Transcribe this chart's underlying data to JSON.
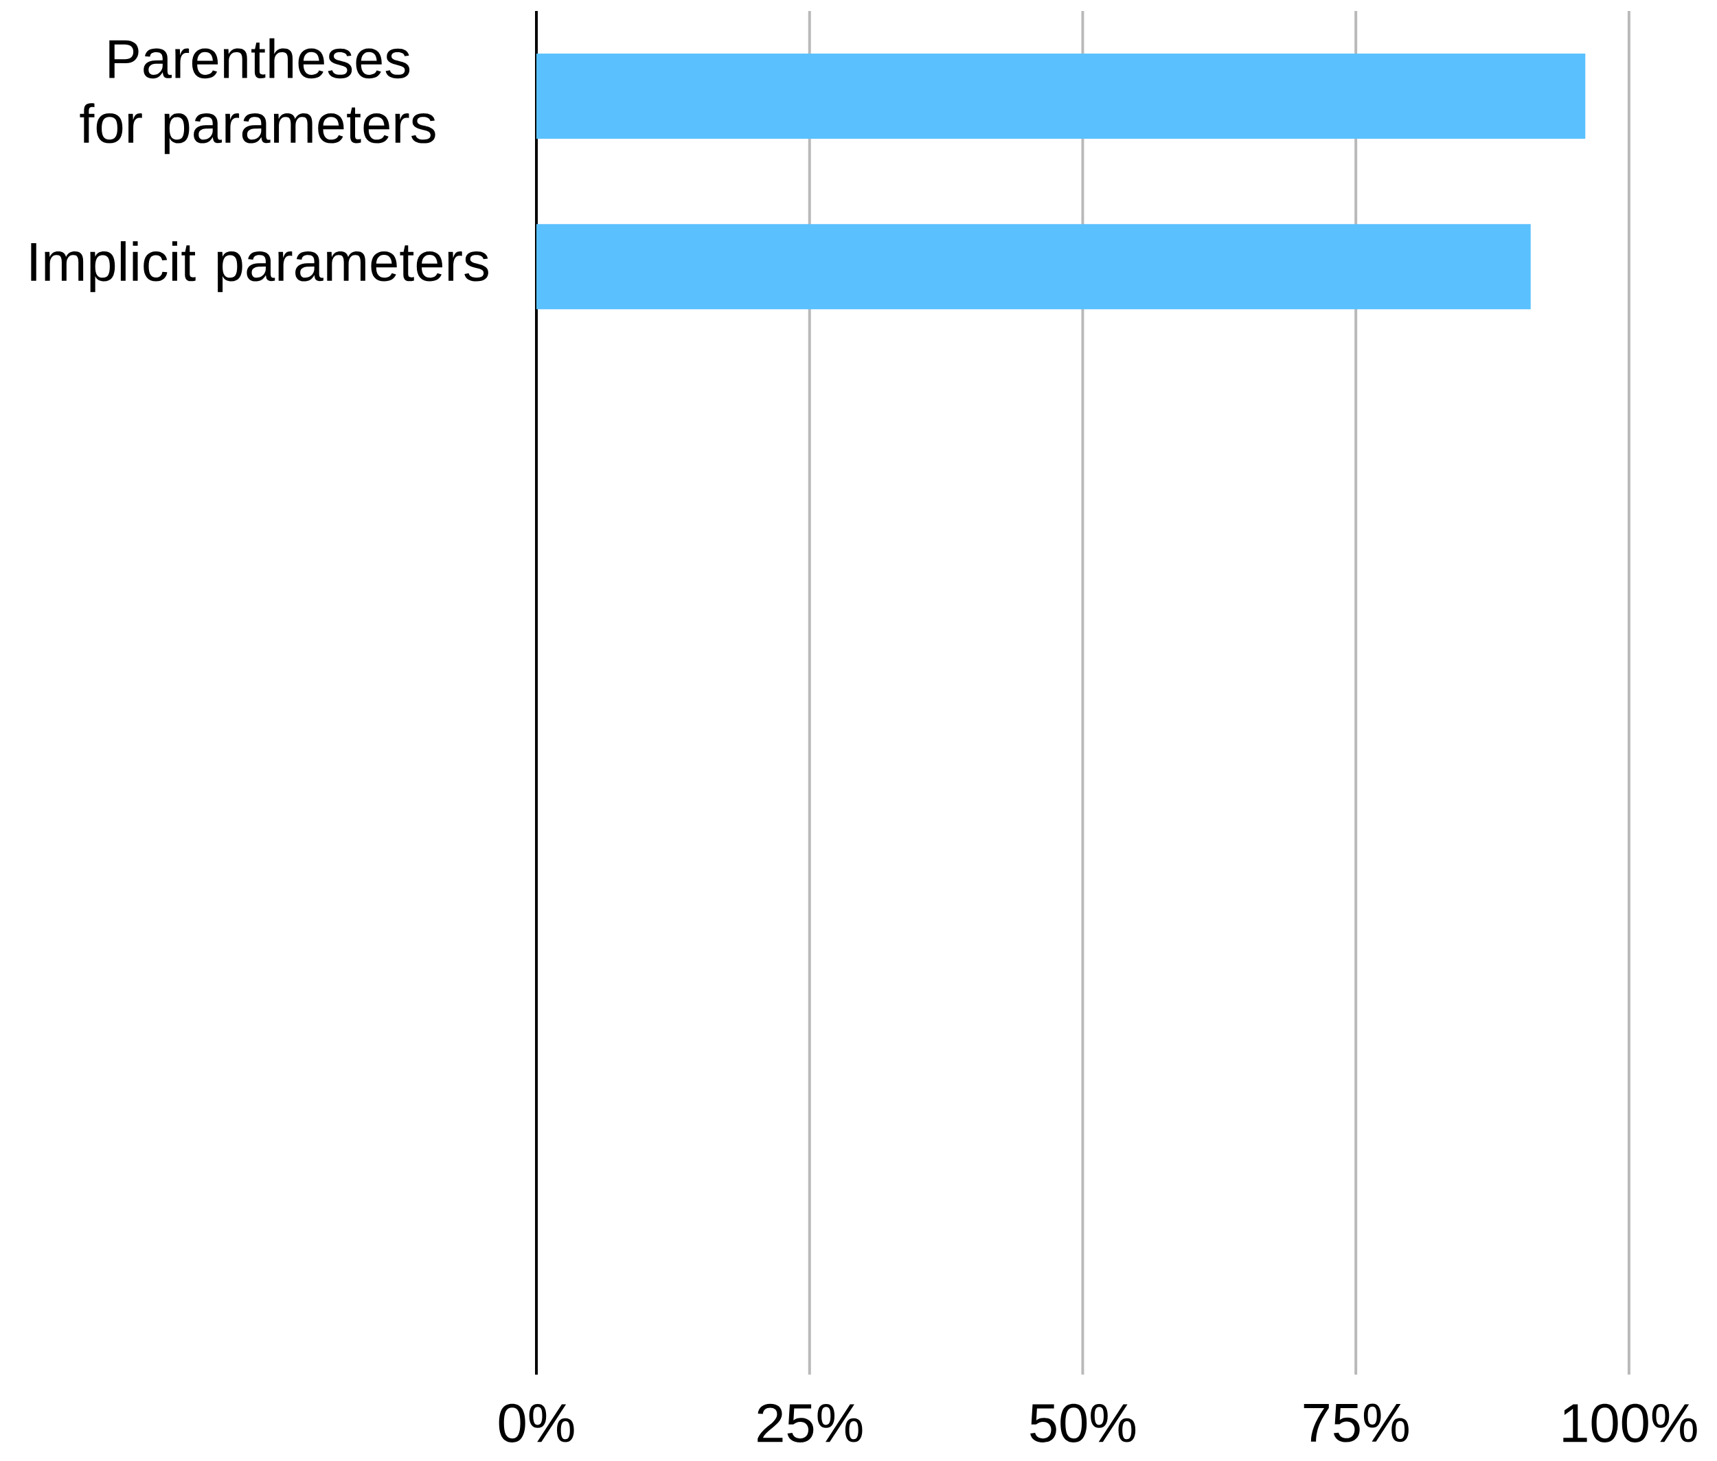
{
  "chart_data": {
    "type": "bar",
    "orientation": "horizontal",
    "categories": [
      "Parentheses for parameters",
      "Implicit parameters",
      null,
      null,
      null,
      null,
      null,
      null
    ],
    "values": [
      96,
      91,
      null,
      null,
      null,
      null,
      null,
      null
    ],
    "color": "#5ac1fe",
    "xlim": [
      0,
      100
    ],
    "xticks": [
      {
        "value": 0,
        "label": "0%"
      },
      {
        "value": 25,
        "label": "25%"
      },
      {
        "value": 50,
        "label": "50%"
      },
      {
        "value": 75,
        "label": "75%"
      },
      {
        "value": 100,
        "label": "100%"
      }
    ],
    "grid": "x"
  }
}
